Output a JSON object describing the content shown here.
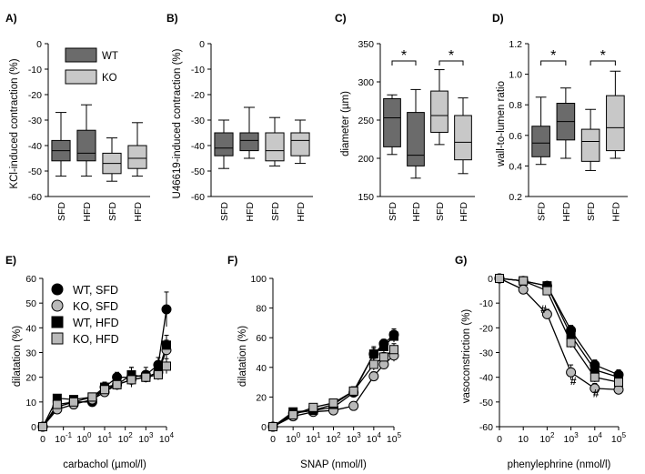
{
  "colors": {
    "wt": "#6b6b6b",
    "ko": "#c8c8c8",
    "black": "#000000",
    "grey_marker": "#b9b9b9"
  },
  "chart_data": [
    {
      "id": "A",
      "type": "box",
      "label": "A)",
      "ylabel": "KCl-induced contraction (%)",
      "ylim": [
        -60,
        0
      ],
      "yticks": [
        "0",
        "-10",
        "-20",
        "-30",
        "-40",
        "-50",
        "-60"
      ],
      "ytick_values": [
        0,
        -10,
        -20,
        -30,
        -40,
        -50,
        -60
      ],
      "categories": [
        "SFD",
        "HFD",
        "SFD",
        "HFD"
      ],
      "groups": [
        "WT",
        "WT",
        "KO",
        "KO"
      ],
      "legend": [
        {
          "name": "WT",
          "group": "WT"
        },
        {
          "name": "KO",
          "group": "KO"
        }
      ],
      "boxes": [
        {
          "min": -52,
          "q1": -46,
          "median": -42,
          "q3": -38,
          "max": -27
        },
        {
          "min": -52,
          "q1": -46,
          "median": -43,
          "q3": -34,
          "max": -24
        },
        {
          "min": -54,
          "q1": -51,
          "median": -47,
          "q3": -43,
          "max": -37
        },
        {
          "min": -52,
          "q1": -49,
          "median": -45,
          "q3": -40,
          "max": -31
        }
      ],
      "significance": []
    },
    {
      "id": "B",
      "type": "box",
      "label": "B)",
      "ylabel": "U46619-induced contraction (%)",
      "ylim": [
        -60,
        0
      ],
      "yticks": [
        "0",
        "-10",
        "-20",
        "-30",
        "-40",
        "-50",
        "-60"
      ],
      "ytick_values": [
        0,
        -10,
        -20,
        -30,
        -40,
        -50,
        -60
      ],
      "categories": [
        "SFD",
        "HFD",
        "SFD",
        "HFD"
      ],
      "groups": [
        "WT",
        "WT",
        "KO",
        "KO"
      ],
      "boxes": [
        {
          "min": -49,
          "q1": -44,
          "median": -41,
          "q3": -35,
          "max": -30
        },
        {
          "min": -45,
          "q1": -42,
          "median": -38,
          "q3": -35,
          "max": -25
        },
        {
          "min": -48,
          "q1": -46,
          "median": -42,
          "q3": -35,
          "max": -29
        },
        {
          "min": -47,
          "q1": -44,
          "median": -38,
          "q3": -35,
          "max": -30
        }
      ],
      "significance": []
    },
    {
      "id": "C",
      "type": "box",
      "label": "C)",
      "ylabel": "diameter (µm)",
      "ylim": [
        150,
        350
      ],
      "yticks": [
        "350",
        "300",
        "250",
        "200",
        "150"
      ],
      "ytick_values": [
        350,
        300,
        250,
        200,
        150
      ],
      "categories": [
        "SFD",
        "HFD",
        "SFD",
        "HFD"
      ],
      "groups": [
        "WT",
        "WT",
        "KO",
        "KO"
      ],
      "boxes": [
        {
          "min": 205,
          "q1": 215,
          "median": 253,
          "q3": 278,
          "max": 283
        },
        {
          "min": 174,
          "q1": 190,
          "median": 204,
          "q3": 260,
          "max": 290
        },
        {
          "min": 218,
          "q1": 234,
          "median": 256,
          "q3": 288,
          "max": 316
        },
        {
          "min": 180,
          "q1": 198,
          "median": 221,
          "q3": 256,
          "max": 279
        }
      ],
      "significance": [
        {
          "between": [
            0,
            1
          ],
          "text": "*"
        },
        {
          "between": [
            2,
            3
          ],
          "text": "*"
        }
      ]
    },
    {
      "id": "D",
      "type": "box",
      "label": "D)",
      "ylabel": "wall-to-lumen ratio",
      "ylim": [
        0.2,
        1.2
      ],
      "yticks": [
        "1.2",
        "1.0",
        "0.8",
        "0.6",
        "0.4",
        "0.2"
      ],
      "ytick_values": [
        1.2,
        1.0,
        0.8,
        0.6,
        0.4,
        0.2
      ],
      "categories": [
        "SFD",
        "HFD",
        "SFD",
        "HFD"
      ],
      "groups": [
        "WT",
        "WT",
        "KO",
        "KO"
      ],
      "boxes": [
        {
          "min": 0.41,
          "q1": 0.46,
          "median": 0.55,
          "q3": 0.66,
          "max": 0.85
        },
        {
          "min": 0.45,
          "q1": 0.57,
          "median": 0.69,
          "q3": 0.81,
          "max": 0.91
        },
        {
          "min": 0.37,
          "q1": 0.43,
          "median": 0.56,
          "q3": 0.64,
          "max": 0.77
        },
        {
          "min": 0.45,
          "q1": 0.5,
          "median": 0.65,
          "q3": 0.86,
          "max": 1.02
        }
      ],
      "significance": [
        {
          "between": [
            0,
            1
          ],
          "text": "*"
        },
        {
          "between": [
            2,
            3
          ],
          "text": "*"
        }
      ]
    },
    {
      "id": "E",
      "type": "line",
      "label": "E)",
      "ylabel": "dilatation (%)",
      "xlabel": "carbachol (µmol/l)",
      "ylim": [
        0,
        60
      ],
      "yticks": [
        "0",
        "10",
        "20",
        "30",
        "40",
        "50",
        "60"
      ],
      "ytick_values": [
        0,
        10,
        20,
        30,
        40,
        50,
        60
      ],
      "xticks": [
        {
          "base": "0",
          "exp": "",
          "pos": 0
        },
        {
          "base": "10",
          "exp": "-1",
          "pos": 1
        },
        {
          "base": "10",
          "exp": "0",
          "pos": 2
        },
        {
          "base": "10",
          "exp": "1",
          "pos": 3
        },
        {
          "base": "10",
          "exp": "2",
          "pos": 4
        },
        {
          "base": "10",
          "exp": "3",
          "pos": 5
        },
        {
          "base": "10",
          "exp": "4",
          "pos": 6
        }
      ],
      "x": [
        0,
        0.7,
        1.5,
        2.4,
        3.0,
        3.6,
        4.3,
        5.0,
        5.6,
        6.0
      ],
      "series": [
        {
          "name": "WT, SFD",
          "marker": "circle",
          "fill": "black",
          "values": [
            0,
            8,
            10,
            10,
            16,
            20,
            20,
            21,
            25,
            47.5
          ],
          "err": [
            0,
            1,
            1,
            1,
            2,
            2,
            4,
            3,
            3,
            7
          ]
        },
        {
          "name": "KO, SFD",
          "marker": "circle",
          "fill": "grey",
          "values": [
            0,
            7,
            9,
            11,
            14,
            17,
            19,
            20,
            22,
            31
          ],
          "err": [
            0,
            1,
            1,
            1,
            2,
            2,
            2,
            2,
            3,
            4
          ]
        },
        {
          "name": "WT, HFD",
          "marker": "square",
          "fill": "black",
          "values": [
            0,
            11.5,
            11,
            12,
            16,
            17,
            21,
            20,
            22,
            33
          ],
          "err": [
            0,
            1.5,
            1,
            1,
            2,
            2,
            3,
            2,
            3,
            4
          ]
        },
        {
          "name": "KO, HFD",
          "marker": "square",
          "fill": "grey",
          "values": [
            0,
            9,
            10,
            12,
            15,
            17,
            19,
            20,
            21,
            24.5
          ],
          "err": [
            0,
            1,
            1,
            1,
            2,
            2,
            2,
            2,
            2,
            3
          ]
        }
      ],
      "legend_position": "top-left"
    },
    {
      "id": "F",
      "type": "line",
      "label": "F)",
      "ylabel": "dilatation (%)",
      "xlabel": "SNAP (nmol/l)",
      "ylim": [
        0,
        100
      ],
      "yticks": [
        "0",
        "20",
        "40",
        "60",
        "80",
        "100"
      ],
      "ytick_values": [
        0,
        20,
        40,
        60,
        80,
        100
      ],
      "xticks": [
        {
          "base": "0",
          "exp": "",
          "pos": 0
        },
        {
          "base": "10",
          "exp": "0",
          "pos": 1
        },
        {
          "base": "10",
          "exp": "1",
          "pos": 2
        },
        {
          "base": "10",
          "exp": "2",
          "pos": 3
        },
        {
          "base": "10",
          "exp": "3",
          "pos": 4
        },
        {
          "base": "10",
          "exp": "4",
          "pos": 5
        },
        {
          "base": "10",
          "exp": "5",
          "pos": 6
        }
      ],
      "x": [
        0,
        1,
        2,
        3,
        4,
        5,
        5.5,
        6
      ],
      "series": [
        {
          "name": "WT, SFD",
          "marker": "circle",
          "fill": "black",
          "values": [
            0,
            9,
            11,
            13,
            23,
            49,
            56,
            62
          ],
          "err": [
            0,
            2,
            2,
            2,
            3,
            4,
            3,
            4
          ]
        },
        {
          "name": "KO, SFD",
          "marker": "circle",
          "fill": "grey",
          "values": [
            0,
            7,
            10,
            11,
            14,
            34,
            42,
            48
          ],
          "err": [
            0,
            2,
            2,
            2,
            2,
            3,
            3,
            4
          ]
        },
        {
          "name": "WT, HFD",
          "marker": "square",
          "fill": "black",
          "values": [
            0,
            10,
            11,
            15,
            24,
            49,
            54,
            61
          ],
          "err": [
            0,
            2,
            2,
            2,
            3,
            5,
            4,
            4
          ]
        },
        {
          "name": "KO, HFD",
          "marker": "square",
          "fill": "grey",
          "values": [
            0,
            8,
            13,
            16,
            24,
            42,
            47,
            52
          ],
          "err": [
            0,
            2,
            2,
            2,
            3,
            4,
            3,
            4
          ]
        }
      ]
    },
    {
      "id": "G",
      "type": "line",
      "label": "G)",
      "ylabel": "vasoconstriction (%)",
      "xlabel": "phenylephrine (nmol/l)",
      "ylim": [
        -60,
        0
      ],
      "yticks": [
        "0",
        "-10",
        "-20",
        "-30",
        "-40",
        "-50",
        "-60"
      ],
      "ytick_values": [
        0,
        -10,
        -20,
        -30,
        -40,
        -50,
        -60
      ],
      "xticks": [
        {
          "base": "0",
          "exp": "",
          "pos": 0
        },
        {
          "base": "10",
          "exp": "",
          "pos": 1
        },
        {
          "base": "10",
          "exp": "2",
          "pos": 2
        },
        {
          "base": "10",
          "exp": "3",
          "pos": 3
        },
        {
          "base": "10",
          "exp": "4",
          "pos": 4
        },
        {
          "base": "10",
          "exp": "5",
          "pos": 5
        }
      ],
      "x": [
        0,
        1,
        2,
        3,
        4,
        5
      ],
      "series": [
        {
          "name": "WT, SFD",
          "marker": "circle",
          "fill": "black",
          "values": [
            0,
            -1,
            -3,
            -21,
            -35,
            -39
          ],
          "err": [
            0,
            1,
            1,
            2,
            2,
            2
          ]
        },
        {
          "name": "KO, SFD",
          "marker": "circle",
          "fill": "grey",
          "values": [
            0,
            -4.5,
            -14.5,
            -38,
            -44.5,
            -45
          ],
          "err": [
            0,
            1,
            2,
            3,
            2,
            2
          ]
        },
        {
          "name": "WT, HFD",
          "marker": "square",
          "fill": "black",
          "values": [
            0,
            -1,
            -3,
            -23,
            -37,
            -40
          ],
          "err": [
            0,
            1,
            1,
            2,
            2,
            2
          ]
        },
        {
          "name": "KO, HFD",
          "marker": "square",
          "fill": "grey",
          "values": [
            0,
            -1,
            -5,
            -26,
            -40,
            -42
          ],
          "err": [
            0,
            1,
            1,
            2,
            2,
            2
          ]
        }
      ],
      "annotations": [
        {
          "text": "#",
          "x": 1.85,
          "y": -14
        },
        {
          "text": "#",
          "x": 3.1,
          "y": -43
        },
        {
          "text": "#",
          "x": 4.05,
          "y": -48
        }
      ]
    }
  ]
}
